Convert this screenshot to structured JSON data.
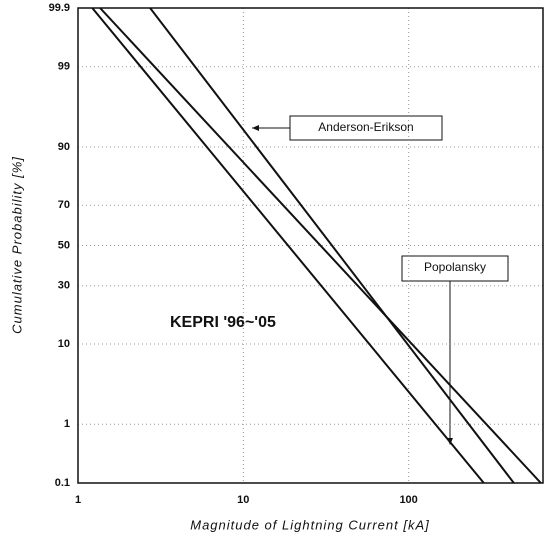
{
  "chart_data": {
    "type": "line",
    "xlabel": "Magnitude of Lightning Current [kA]",
    "ylabel": "Cumulative Probability [%]",
    "xscale": "log",
    "yscale": "probability",
    "xlim": [
      1,
      650
    ],
    "xticks": [
      1,
      10,
      100
    ],
    "ylim": [
      0.1,
      99.9
    ],
    "yticks": [
      {
        "value": 0.1,
        "label": "0.1"
      },
      1,
      10,
      30,
      50,
      70,
      90,
      99,
      {
        "value": 99.9,
        "label": "99.9"
      }
    ],
    "grid": true,
    "series": [
      {
        "name": "KEPRI '96~'05",
        "color": "#111111",
        "x": [
          1.22,
          285
        ],
        "values": [
          99.9,
          0.1
        ]
      },
      {
        "name": "Anderson-Erikson",
        "color": "#111111",
        "x": [
          2.73,
          433
        ],
        "values": [
          99.9,
          0.1
        ]
      },
      {
        "name": "Popolansky",
        "color": "#111111",
        "x": [
          1.36,
          631
        ],
        "values": [
          99.9,
          0.1
        ]
      }
    ]
  }
}
